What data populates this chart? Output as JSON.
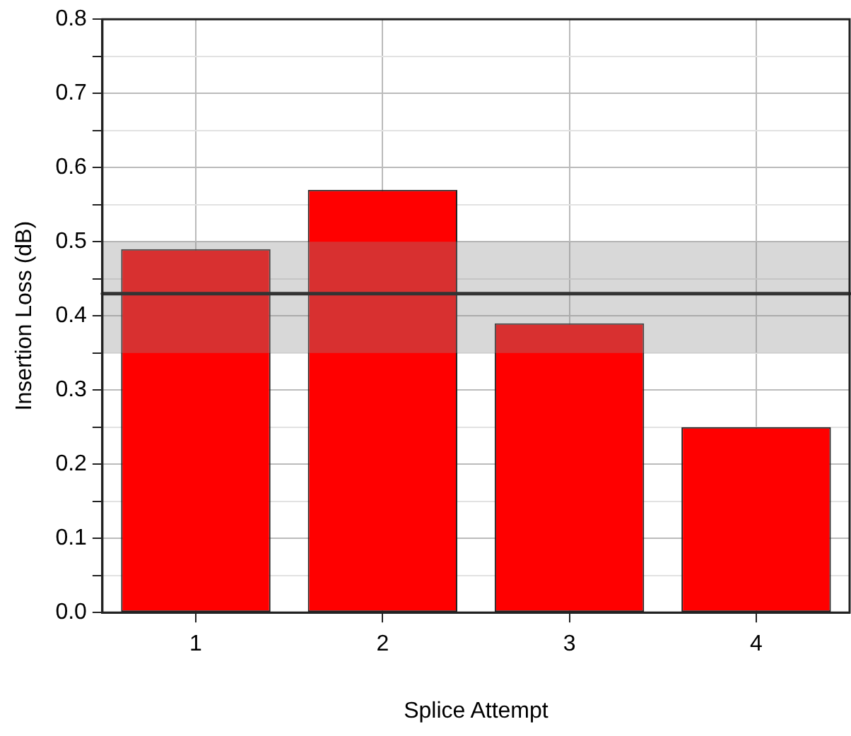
{
  "chart_data": {
    "type": "bar",
    "xlabel": "Splice Attempt",
    "ylabel": "Insertion Loss (dB)",
    "categories": [
      "1",
      "2",
      "3",
      "4"
    ],
    "values": [
      0.49,
      0.57,
      0.39,
      0.25
    ],
    "color": "#ff0000",
    "ylim": [
      0,
      0.8
    ],
    "yticks": [
      {
        "value": 0,
        "label": "0.0"
      },
      {
        "value": 0.05,
        "label": null
      },
      {
        "value": 0.1,
        "label": "0.1"
      },
      {
        "value": 0.15,
        "label": null
      },
      {
        "value": 0.2,
        "label": "0.2"
      },
      {
        "value": 0.25,
        "label": null
      },
      {
        "value": 0.3,
        "label": "0.3"
      },
      {
        "value": 0.35,
        "label": null
      },
      {
        "value": 0.4,
        "label": "0.4"
      },
      {
        "value": 0.45,
        "label": null
      },
      {
        "value": 0.5,
        "label": "0.5"
      },
      {
        "value": 0.55,
        "label": null
      },
      {
        "value": 0.6,
        "label": "0.6"
      },
      {
        "value": 0.65,
        "label": null
      },
      {
        "value": 0.7,
        "label": "0.7"
      },
      {
        "value": 0.75,
        "label": null
      },
      {
        "value": 0.8,
        "label": "0.8"
      }
    ],
    "ref_lines": [
      {
        "axis": "y",
        "value": 0.43,
        "color": "#333333",
        "line_style": "solid"
      }
    ],
    "bands": [
      {
        "axis": "y",
        "from": 0.35,
        "to": 0.5,
        "color": "#8e8e8e"
      }
    ],
    "grid": true,
    "legend": false
  }
}
